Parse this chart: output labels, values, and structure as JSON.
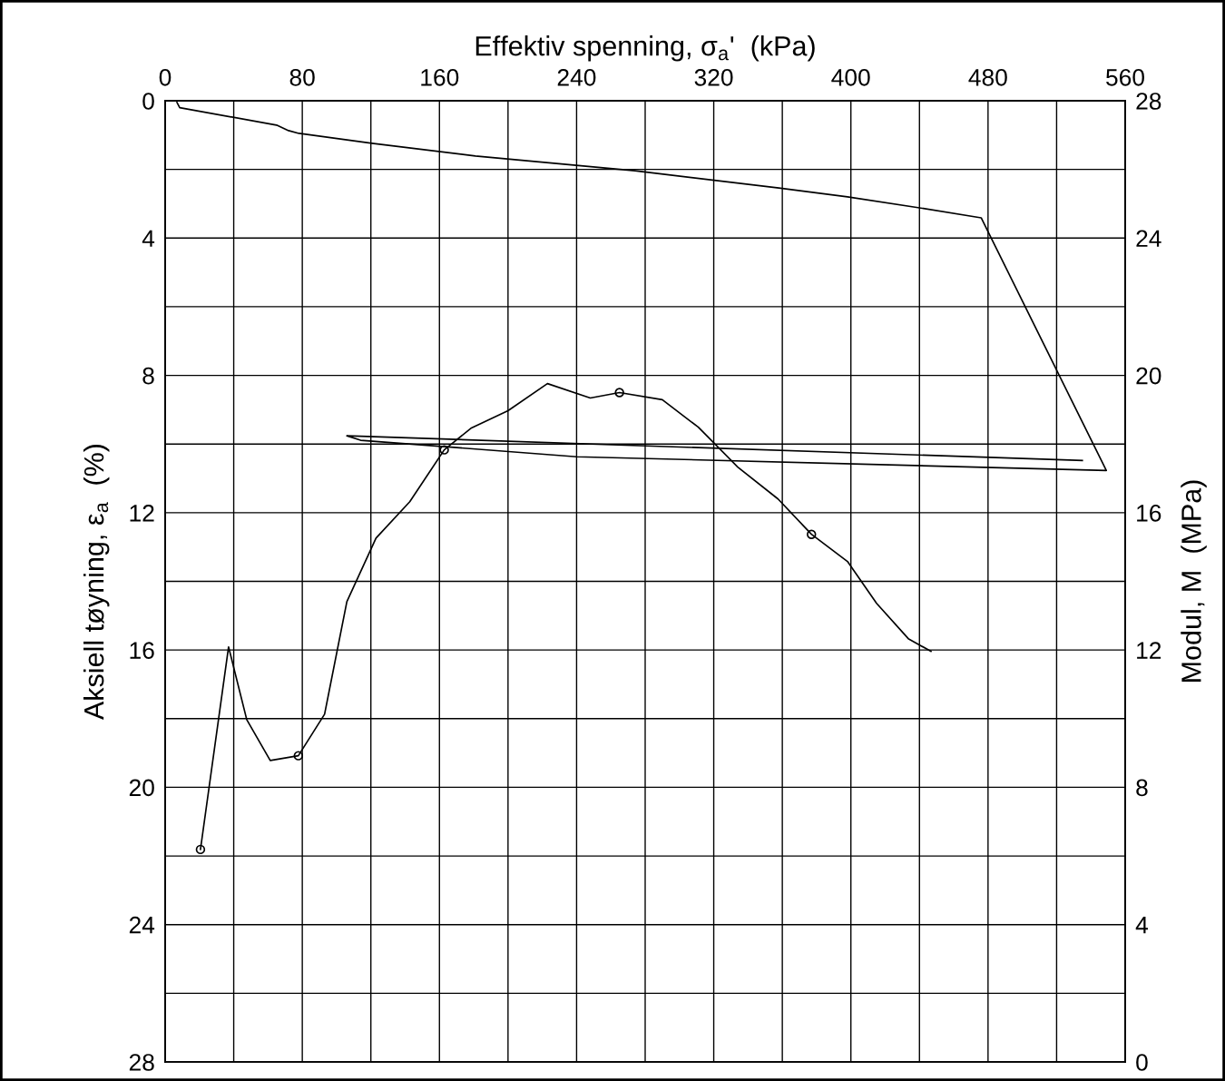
{
  "chart_data": {
    "type": "line",
    "xlabel": "Effektiv spenning, σ$_{a}$'  (kPa)",
    "ylabel": "Aksiell tøyning, ε$_{a}$  (%)",
    "y2label": "Modul, M  (MPa)",
    "xlim": [
      0,
      560
    ],
    "xticks": [
      0,
      {
        "value": 40,
        "label": null
      },
      80,
      {
        "value": 120,
        "label": null
      },
      160,
      {
        "value": 200,
        "label": null
      },
      240,
      {
        "value": 280,
        "label": null
      },
      320,
      {
        "value": 360,
        "label": null
      },
      400,
      {
        "value": 440,
        "label": null
      },
      480,
      {
        "value": 520,
        "label": null
      },
      560
    ],
    "ylim": [
      28,
      0
    ],
    "yticks": [
      0,
      {
        "value": 2,
        "label": null
      },
      4,
      {
        "value": 6,
        "label": null
      },
      8,
      {
        "value": 10,
        "label": null
      },
      12,
      {
        "value": 14,
        "label": null
      },
      16,
      {
        "value": 18,
        "label": null
      },
      20,
      {
        "value": 22,
        "label": null
      },
      24,
      {
        "value": 26,
        "label": null
      },
      28
    ],
    "y2lim": [
      0,
      28
    ],
    "y2ticks": [
      0,
      4,
      8,
      12,
      16,
      20,
      24,
      28
    ],
    "grid": true,
    "line_style": "solid",
    "series": [
      {
        "color": "#000000",
        "marker": "none",
        "x": [
          6.9,
          8.5,
          65,
          72,
          78,
          120.6,
          181,
          274,
          358,
          398,
          440,
          476,
          549,
          240,
          114,
          106,
          535
        ],
        "values": [
          0.05,
          0.2,
          0.71,
          0.87,
          0.95,
          1.24,
          1.61,
          2.04,
          2.54,
          2.8,
          3.12,
          3.41,
          10.77,
          10.37,
          9.89,
          9.76,
          10.48
        ]
      },
      {
        "axis": "y2",
        "color": "#000000",
        "marker": "none",
        "x": [
          20.6,
          37,
          47.6,
          61.3,
          77.7,
          93,
          106,
          123,
          142.7,
          162.8,
          178.7,
          200,
          223,
          248,
          265,
          290,
          311,
          334,
          357.5,
          377,
          398,
          415,
          433.5,
          446.7
        ],
        "values": [
          6.19,
          12.09,
          9.97,
          8.78,
          8.92,
          10.13,
          13.41,
          15.26,
          16.32,
          17.83,
          18.47,
          18.97,
          19.76,
          19.34,
          19.5,
          19.29,
          18.49,
          17.33,
          16.4,
          15.37,
          14.58,
          13.36,
          12.33,
          11.96
        ]
      },
      {
        "type": "scatter",
        "axis": "y2",
        "color": "#000000",
        "marker": "circle",
        "x": [
          20.6,
          77.7,
          162.8,
          265,
          377
        ],
        "values": [
          6.19,
          8.92,
          17.83,
          19.5,
          15.37
        ]
      }
    ]
  }
}
